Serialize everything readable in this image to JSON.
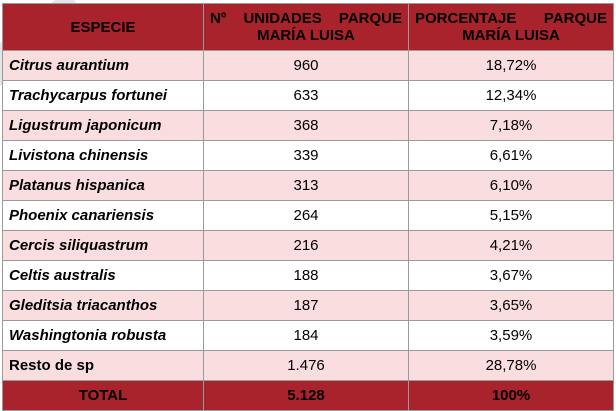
{
  "table": {
    "headers": {
      "species": "ESPECIE",
      "units_line1": "Nº UNIDADES PARQUE",
      "units_line2": "MARÍA LUISA",
      "pct_line1": "PORCENTAJE PARQUE",
      "pct_line2": "MARÍA LUISA"
    },
    "rows": [
      {
        "species": "Citrus aurantium",
        "units": "960",
        "pct": "18,72%"
      },
      {
        "species": "Trachycarpus fortunei",
        "units": "633",
        "pct": "12,34%"
      },
      {
        "species": "Ligustrum japonicum",
        "units": "368",
        "pct": "7,18%"
      },
      {
        "species": "Livistona chinensis",
        "units": "339",
        "pct": "6,61%"
      },
      {
        "species": "Platanus hispanica",
        "units": "313",
        "pct": "6,10%"
      },
      {
        "species": "Phoenix canariensis",
        "units": "264",
        "pct": "5,15%"
      },
      {
        "species": "Cercis siliquastrum",
        "units": "216",
        "pct": "4,21%"
      },
      {
        "species": "Celtis australis",
        "units": "188",
        "pct": "3,67%"
      },
      {
        "species": "Gleditsia triacanthos",
        "units": "187",
        "pct": "3,65%"
      },
      {
        "species": "Washingtonia robusta",
        "units": "184",
        "pct": "3,59%"
      },
      {
        "species": "Resto de sp",
        "units": "1.476",
        "pct": "28,78%"
      }
    ],
    "total": {
      "label": "TOTAL",
      "units": "5.128",
      "pct": "100%"
    }
  },
  "colors": {
    "header_bg": "#a8232b",
    "alt_row_bg": "#f9dddf",
    "border": "#9a9a9a"
  }
}
